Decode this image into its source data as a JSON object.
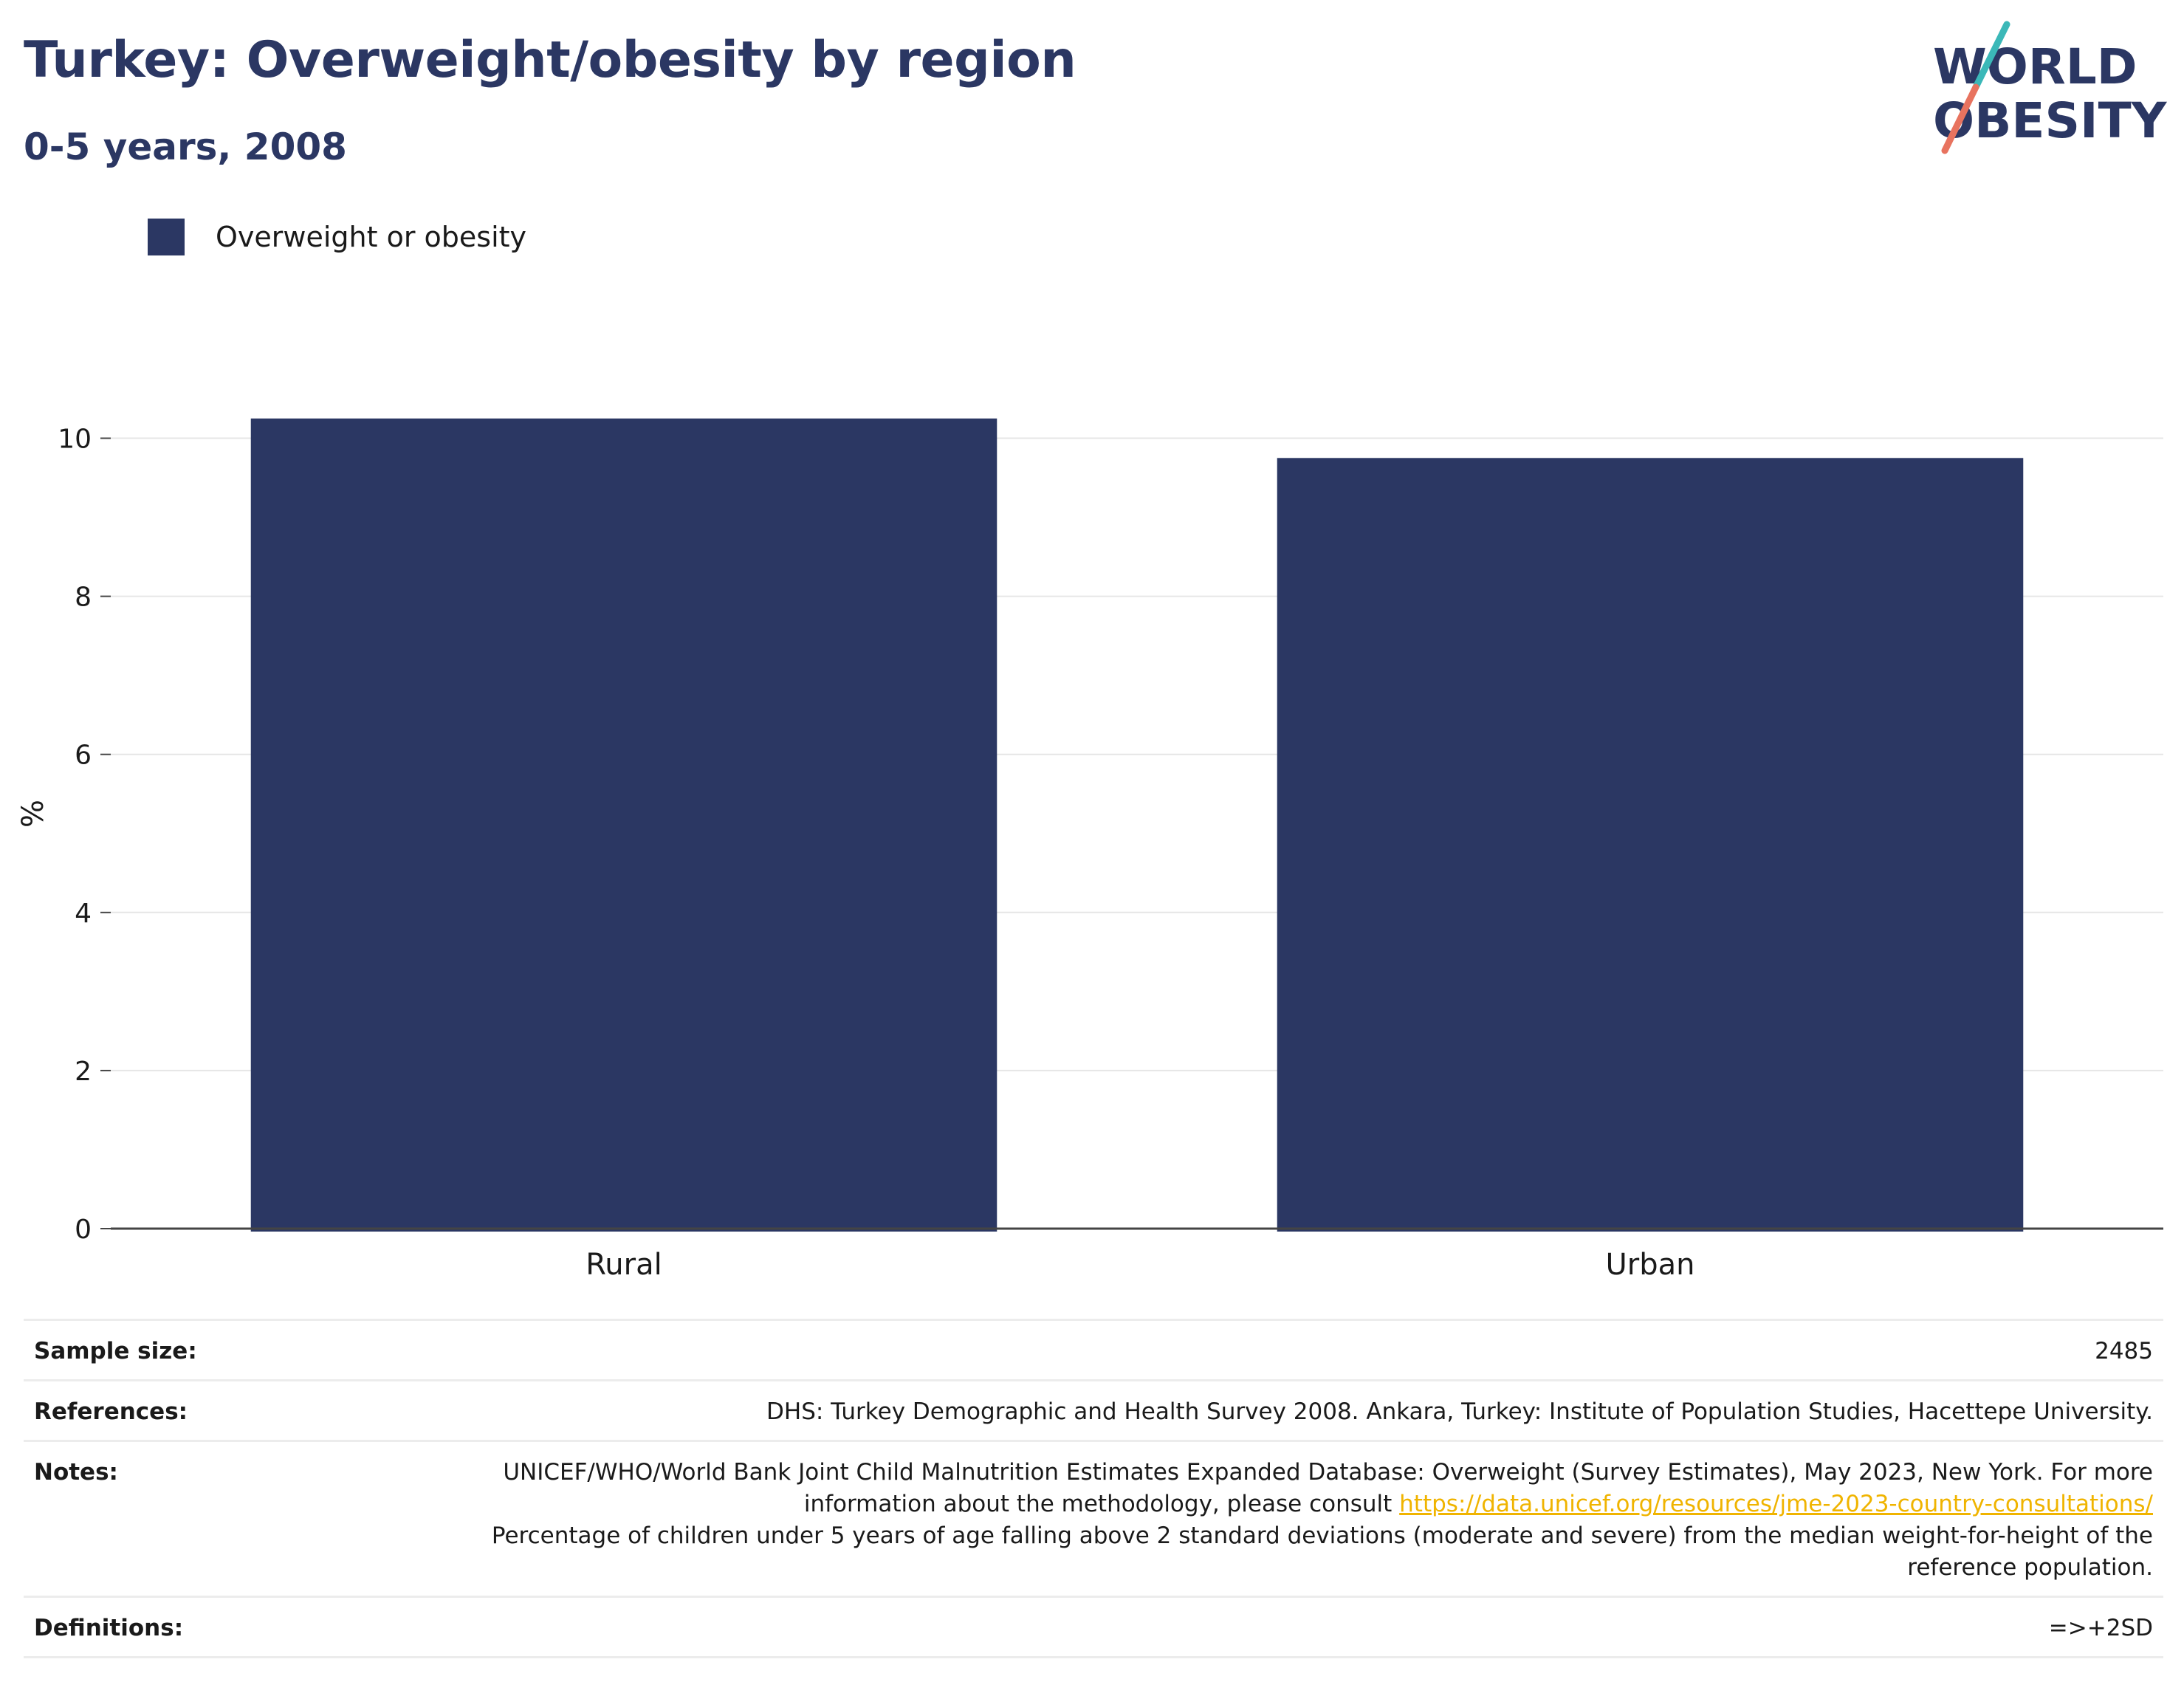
{
  "header": {
    "title": "Turkey: Overweight/obesity by region",
    "subtitle": "0-5 years, 2008"
  },
  "logo": {
    "line1": "WORLD",
    "line2": "OBESITY",
    "color": "#2b3763",
    "accent_teal": "#3bb8b8",
    "accent_coral": "#e8735f"
  },
  "legend": {
    "label": "Overweight or obesity",
    "color": "#2b3763"
  },
  "chart_data": {
    "type": "bar",
    "categories": [
      "Rural",
      "Urban"
    ],
    "series": [
      {
        "name": "Overweight or obesity",
        "values": [
          10.25,
          9.75
        ],
        "color": "#2b3763"
      }
    ],
    "ylabel": "%",
    "ylim": [
      0,
      10.5
    ],
    "yticks": [
      0,
      2,
      4,
      6,
      8,
      10
    ],
    "grid": true
  },
  "info": {
    "sample_size_label": "Sample size:",
    "sample_size_value": "2485",
    "references_label": "References:",
    "references_value": "DHS: Turkey Demographic and Health Survey 2008. Ankara, Turkey: Institute of Population Studies, Hacettepe University.",
    "notes_label": "Notes:",
    "notes_text_1": "UNICEF/WHO/World Bank Joint Child Malnutrition Estimates Expanded Database: Overweight (Survey Estimates), May 2023, New York. For more information about the methodology, please consult ",
    "notes_link": "https://data.unicef.org/resources/jme-2023-country-consultations/",
    "notes_text_2": "Percentage of children under 5 years of age falling above 2 standard deviations (moderate and severe) from the median weight-for-height of the reference population.",
    "definitions_label": "Definitions:",
    "definitions_value": "=>+2SD"
  }
}
